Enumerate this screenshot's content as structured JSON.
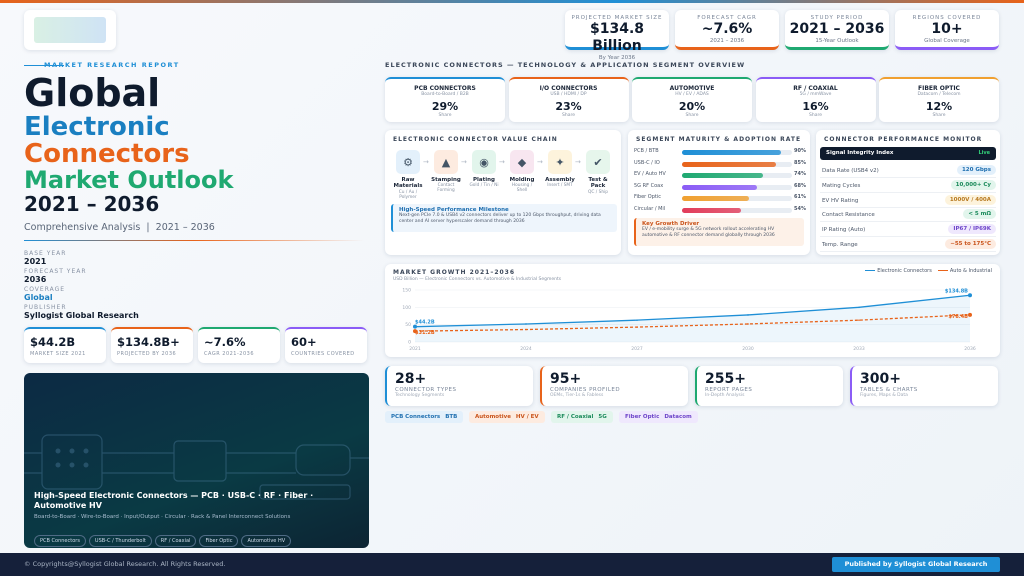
{
  "header": {
    "kpis": [
      {
        "label": "PROJECTED MARKET SIZE",
        "value": "$134.8 Billion",
        "sub": "By Year 2036"
      },
      {
        "label": "FORECAST CAGR",
        "value": "~7.6%",
        "sub": "2021 – 2036"
      },
      {
        "label": "STUDY PERIOD",
        "value": "2021 – 2036",
        "sub": "15-Year Outlook"
      },
      {
        "label": "REGIONS COVERED",
        "value": "10+",
        "sub": "Global Coverage"
      }
    ]
  },
  "cover": {
    "tag": "MARKET RESEARCH REPORT",
    "title_lines": [
      "Global",
      "Electronic",
      "Connectors",
      "Market Outlook",
      "2021 – 2036"
    ],
    "subtitle": "Comprehensive Analysis  |  2021 – 2036",
    "meta": [
      {
        "label": "BASE YEAR",
        "value": "2021"
      },
      {
        "label": "FORECAST YEAR",
        "value": "2036"
      },
      {
        "label": "COVERAGE",
        "value": "Global"
      },
      {
        "label": "PUBLISHER",
        "value": "Syllogist Global Research"
      }
    ],
    "stats": [
      {
        "value": "$44.2B",
        "label": "MARKET SIZE 2021"
      },
      {
        "value": "$134.8B+",
        "label": "PROJECTED BY 2036"
      },
      {
        "value": "~7.6%",
        "label": "CAGR 2021-2036"
      },
      {
        "value": "60+",
        "label": "COUNTRIES COVERED"
      }
    ],
    "hero": {
      "title": "High-Speed Electronic Connectors — PCB · USB-C · RF · Fiber · Automotive HV",
      "subtitle": "Board-to-Board · Wire-to-Board · Input/Output · Circular · Rack & Panel Interconnect Solutions",
      "tags": [
        "PCB Connectors",
        "USB-C / Thunderbolt",
        "RF / Coaxial",
        "Fiber Optic",
        "Automotive HV"
      ]
    }
  },
  "overview": {
    "title": "ELECTRONIC CONNECTORS — TECHNOLOGY & APPLICATION SEGMENT OVERVIEW",
    "segments": [
      {
        "name": "PCB CONNECTORS",
        "sub": "Board-to-Board / B2B",
        "share": "29%",
        "label": "Share",
        "color": "#1f8fd6"
      },
      {
        "name": "I/O CONNECTORS",
        "sub": "USB / HDMI / DP",
        "share": "23%",
        "label": "Share",
        "color": "#e8631a"
      },
      {
        "name": "AUTOMOTIVE",
        "sub": "HV / EV / ADAS",
        "share": "20%",
        "label": "Share",
        "color": "#1fa971"
      },
      {
        "name": "RF / COAXIAL",
        "sub": "5G / mmWave",
        "share": "16%",
        "label": "Share",
        "color": "#8b5cf6"
      },
      {
        "name": "FIBER OPTIC",
        "sub": "Datacom / Telecom",
        "share": "12%",
        "label": "Share",
        "color": "#f0a030"
      }
    ]
  },
  "value_chain": {
    "title": "ELECTRONIC CONNECTOR VALUE CHAIN",
    "steps": [
      {
        "name": "Raw Materials",
        "sub": "Cu / Au / Polymer"
      },
      {
        "name": "Stamping",
        "sub": "Contact Forming"
      },
      {
        "name": "Plating",
        "sub": "Gold / Tin / Ni"
      },
      {
        "name": "Molding",
        "sub": "Housing / Shell"
      },
      {
        "name": "Assembly",
        "sub": "Insert / SMT"
      },
      {
        "name": "Test & Pack",
        "sub": "QC / Ship"
      }
    ],
    "milestone": {
      "title": "High-Speed Performance Milestone",
      "text": "Next-gen PCIe 7.0 & USB4 v2 connectors deliver up to 120 Gbps throughput, driving data center and AI server hyperscaler demand through 2036"
    }
  },
  "maturity": {
    "title": "SEGMENT MATURITY & ADOPTION RATE",
    "categories": [
      "PCB / BTB",
      "USB-C / IO",
      "EV / Auto HV",
      "5G RF Coax",
      "Fiber Optic",
      "Circular / Mil"
    ],
    "values": [
      90,
      85,
      74,
      68,
      61,
      54
    ],
    "value_labels": [
      "90%",
      "85%",
      "74%",
      "68%",
      "61%",
      "54%"
    ],
    "colors": [
      "#1f8fd6",
      "#e8631a",
      "#1fa971",
      "#8b5cf6",
      "#f0a030",
      "#e23c5a"
    ],
    "xlim": [
      0,
      100
    ],
    "driver": {
      "title": "Key Growth Driver",
      "text": "EV / e-mobility surge & 5G network rollout accelerating HV automotive & RF connector demand globally through 2036"
    }
  },
  "monitor": {
    "title": "CONNECTOR PERFORMANCE MONITOR",
    "header": "Signal Integrity Index",
    "badge": "Live",
    "rows": [
      {
        "label": "Data Rate (USB4 v2)",
        "value": "120 Gbps"
      },
      {
        "label": "Mating Cycles",
        "value": "10,000+ Cy"
      },
      {
        "label": "EV HV Rating",
        "value": "1000V / 400A"
      },
      {
        "label": "Contact Resistance",
        "value": "< 5 mΩ"
      },
      {
        "label": "IP Rating (Auto)",
        "value": "IP67 / IP69K"
      },
      {
        "label": "Temp. Range",
        "value": "−55 to 175°C"
      }
    ]
  },
  "chart_data": {
    "type": "line",
    "title": "MARKET GROWTH 2021–2036",
    "subtitle": "USD Billion — Electronic Connectors vs. Automotive & Industrial Segments",
    "x": [
      2021,
      2024,
      2027,
      2030,
      2033,
      2036
    ],
    "xlim": [
      2021,
      2036
    ],
    "ylim": [
      0,
      150
    ],
    "yticks": [
      0,
      50,
      100,
      150
    ],
    "series": [
      {
        "name": "Electronic Connectors",
        "color": "#1f8fd6",
        "values": [
          44.2,
          52,
          63,
          78,
          100,
          134.8
        ],
        "value_labels": [
          "$44.2B",
          null,
          null,
          null,
          null,
          "$134.8B"
        ]
      },
      {
        "name": "Auto & Industrial",
        "color": "#e8631a",
        "values": [
          31.2,
          36,
          43,
          52,
          63,
          78.4
        ],
        "value_labels": [
          "$31.2B",
          null,
          null,
          null,
          null,
          "$78.4B"
        ]
      }
    ]
  },
  "counts": [
    {
      "value": "28+",
      "label": "CONNECTOR TYPES",
      "sub": "Technology Segments"
    },
    {
      "value": "95+",
      "label": "COMPANIES PROFILED",
      "sub": "OEMs, Tier-1s & Fabless"
    },
    {
      "value": "255+",
      "label": "REPORT PAGES",
      "sub": "In-Depth Analysis"
    },
    {
      "value": "300+",
      "label": "TABLES & CHARTS",
      "sub": "Figures, Maps & Data"
    }
  ],
  "chips": [
    {
      "name": "PCB Connectors",
      "detail": "BTB"
    },
    {
      "name": "Automotive",
      "detail": "HV / EV"
    },
    {
      "name": "RF / Coaxial",
      "detail": "5G"
    },
    {
      "name": "Fiber Optic",
      "detail": "Datacom"
    }
  ],
  "footer": {
    "copyright": "© Copyrights@Syllogist Global Research. All Rights Reserved.",
    "button": "Published by Syllogist Global Research"
  }
}
